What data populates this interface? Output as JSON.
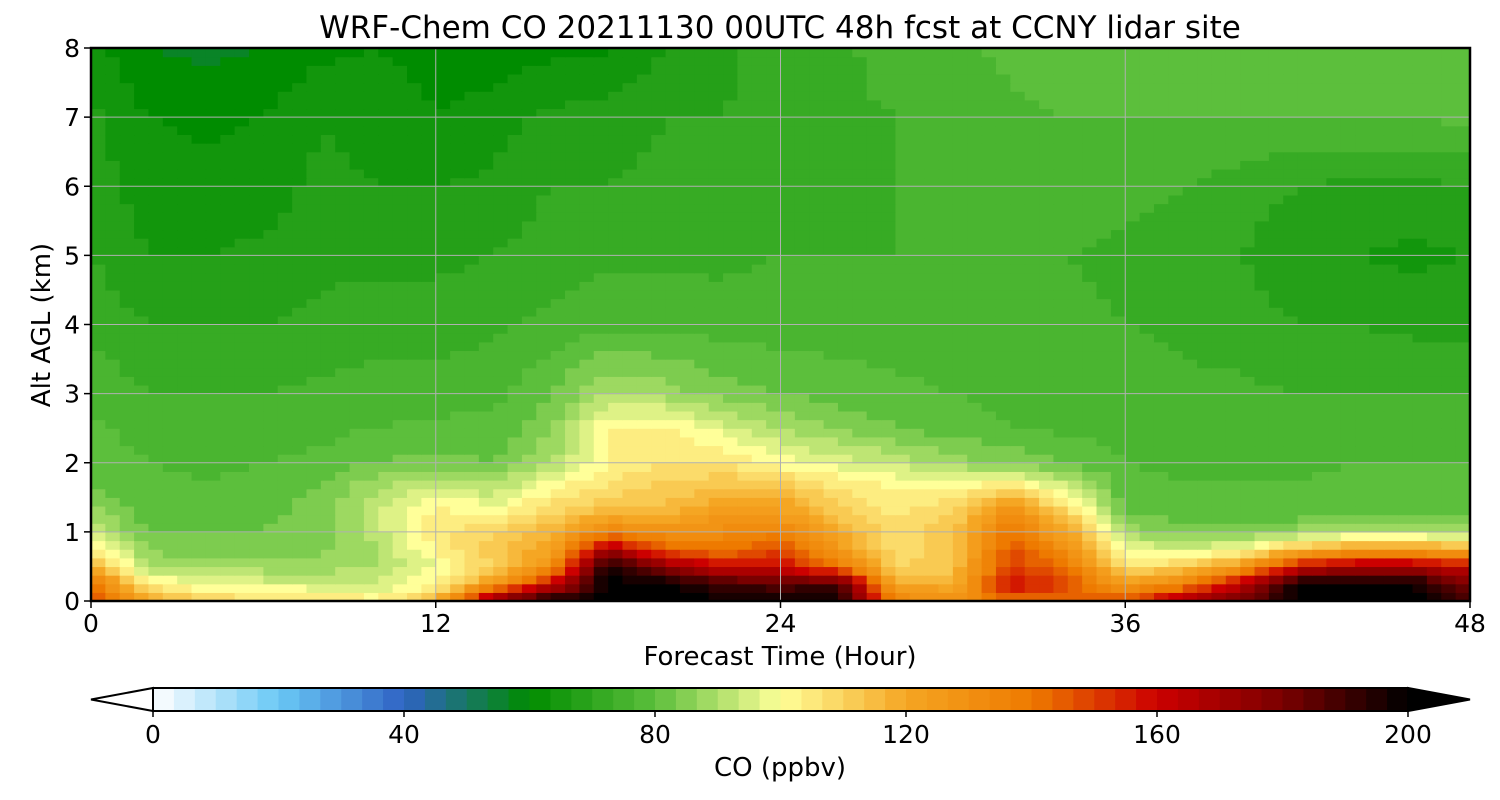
{
  "chart_data": {
    "type": "heatmap",
    "title": "WRF-Chem CO  20211130 00UTC 48h fcst at CCNY lidar site",
    "xlabel": "Forecast Time (Hour)",
    "ylabel": "Alt AGL (km)",
    "xlim": [
      0,
      48
    ],
    "ylim": [
      0,
      8
    ],
    "xticks": [
      0,
      12,
      24,
      36,
      48
    ],
    "yticks": [
      0,
      1,
      2,
      3,
      4,
      5,
      6,
      7,
      8
    ],
    "grid": true,
    "colorbar": {
      "label": "CO  (ppbv)",
      "range": [
        0,
        200
      ],
      "ticks": [
        0,
        40,
        80,
        120,
        160,
        200
      ],
      "extend": "both",
      "colors": [
        "#ffffff",
        "#6ac8f5",
        "#2f62c4",
        "#008c00",
        "#5cbf3c",
        "#ffff99",
        "#f5a623",
        "#ee7a00",
        "#cc0000",
        "#7a0000",
        "#000000"
      ]
    },
    "x": [
      0,
      2,
      4,
      6,
      8,
      10,
      12,
      14,
      16,
      18,
      20,
      22,
      24,
      26,
      28,
      30,
      32,
      34,
      36,
      38,
      40,
      42,
      44,
      46,
      48
    ],
    "y": [
      0,
      0.25,
      0.5,
      0.75,
      1,
      1.25,
      1.5,
      1.75,
      2,
      2.5,
      3,
      4,
      5,
      6,
      7,
      8
    ],
    "z": [
      [
        150,
        120,
        110,
        108,
        106,
        104,
        115,
        180,
        200,
        200,
        200,
        200,
        200,
        200,
        135,
        130,
        140,
        140,
        150,
        170,
        180,
        200,
        200,
        200,
        190
      ],
      [
        140,
        105,
        98,
        96,
        95,
        94,
        102,
        125,
        160,
        200,
        200,
        190,
        185,
        190,
        120,
        118,
        160,
        150,
        122,
        135,
        165,
        200,
        200,
        200,
        180
      ],
      [
        118,
        90,
        88,
        88,
        88,
        90,
        98,
        110,
        130,
        200,
        175,
        160,
        160,
        140,
        110,
        112,
        150,
        140,
        108,
        110,
        125,
        160,
        170,
        170,
        160
      ],
      [
        105,
        85,
        84,
        84,
        85,
        90,
        102,
        112,
        120,
        170,
        145,
        140,
        150,
        125,
        108,
        112,
        148,
        130,
        98,
        95,
        100,
        115,
        125,
        125,
        120
      ],
      [
        95,
        82,
        82,
        82,
        84,
        92,
        105,
        110,
        118,
        135,
        130,
        132,
        135,
        118,
        108,
        112,
        140,
        120,
        88,
        85,
        84,
        88,
        90,
        90,
        88
      ],
      [
        88,
        80,
        80,
        81,
        84,
        94,
        104,
        100,
        110,
        118,
        118,
        125,
        125,
        112,
        106,
        110,
        132,
        112,
        82,
        80,
        80,
        80,
        81,
        81,
        80
      ],
      [
        84,
        79,
        79,
        80,
        83,
        92,
        100,
        95,
        104,
        110,
        113,
        118,
        118,
        108,
        103,
        106,
        118,
        100,
        80,
        79,
        79,
        79,
        80,
        80,
        79
      ],
      [
        81,
        79,
        78,
        79,
        81,
        88,
        92,
        88,
        98,
        105,
        110,
        112,
        110,
        104,
        100,
        98,
        100,
        90,
        79,
        78,
        78,
        78,
        79,
        79,
        79
      ],
      [
        80,
        78,
        77,
        78,
        79,
        82,
        84,
        82,
        90,
        102,
        106,
        106,
        100,
        96,
        93,
        88,
        85,
        82,
        78,
        77,
        77,
        77,
        78,
        78,
        78
      ],
      [
        79,
        76,
        76,
        76,
        77,
        78,
        79,
        79,
        85,
        102,
        104,
        96,
        90,
        86,
        82,
        80,
        78,
        77,
        77,
        76,
        76,
        76,
        77,
        77,
        77
      ],
      [
        77,
        74,
        74,
        74,
        75,
        76,
        76,
        77,
        82,
        90,
        88,
        84,
        82,
        80,
        79,
        78,
        77,
        76,
        76,
        75,
        75,
        74,
        74,
        74,
        74
      ],
      [
        73,
        70,
        70,
        70,
        71,
        72,
        72,
        73,
        75,
        77,
        77,
        76,
        76,
        76,
        76,
        76,
        75,
        75,
        74,
        73,
        72,
        70,
        70,
        69,
        69
      ],
      [
        70,
        66,
        66,
        67,
        69,
        69,
        69,
        70,
        72,
        73,
        73,
        73,
        74,
        74,
        74,
        75,
        75,
        74,
        73,
        72,
        70,
        67,
        66,
        65,
        66
      ],
      [
        68,
        64,
        63,
        64,
        67,
        66,
        66,
        67,
        70,
        70,
        71,
        71,
        73,
        73,
        74,
        75,
        76,
        76,
        75,
        74,
        72,
        70,
        69,
        69,
        70
      ],
      [
        67,
        62,
        61,
        62,
        66,
        64,
        62,
        64,
        67,
        68,
        70,
        70,
        72,
        73,
        74,
        76,
        77,
        78,
        78,
        78,
        78,
        78,
        78,
        78,
        79
      ],
      [
        64,
        58,
        57,
        58,
        61,
        62,
        61,
        59,
        61,
        61,
        66,
        69,
        72,
        73,
        76,
        77,
        79,
        81,
        81,
        81,
        81,
        81,
        81,
        80,
        80
      ]
    ]
  }
}
